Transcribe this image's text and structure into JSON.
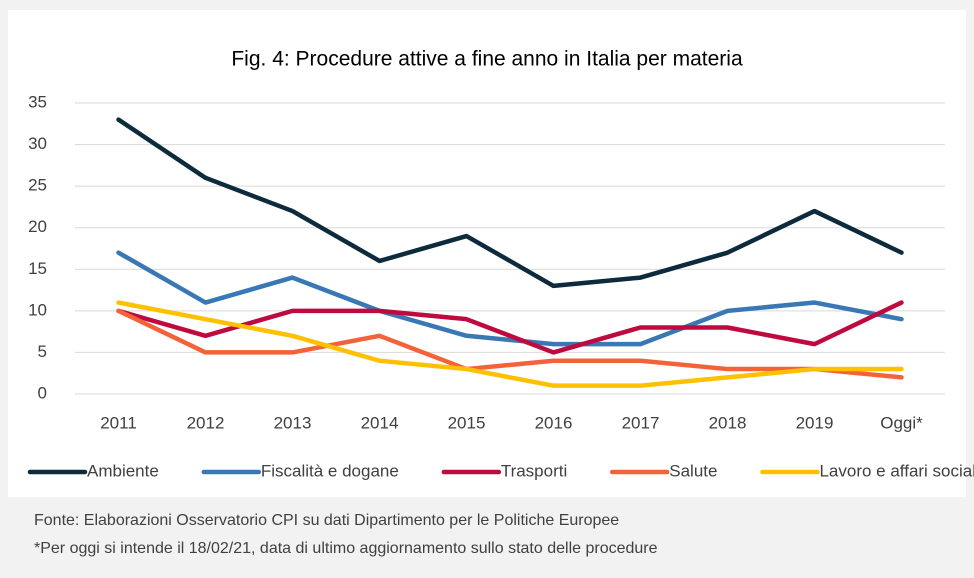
{
  "chart_data": {
    "type": "line",
    "title": "Fig. 4: Procedure attive a fine anno in Italia per materia",
    "categories": [
      "2011",
      "2012",
      "2013",
      "2014",
      "2015",
      "2016",
      "2017",
      "2018",
      "2019",
      "Oggi*"
    ],
    "series": [
      {
        "name": "Ambiente",
        "color": "#0e2a3d",
        "values": [
          33,
          26,
          22,
          16,
          19,
          13,
          14,
          17,
          22,
          17
        ]
      },
      {
        "name": "Fiscalità e dogane",
        "color": "#3a78b5",
        "values": [
          17,
          11,
          14,
          10,
          7,
          6,
          6,
          10,
          11,
          9
        ]
      },
      {
        "name": "Trasporti",
        "color": "#be0a3e",
        "values": [
          10,
          7,
          10,
          10,
          9,
          5,
          8,
          8,
          6,
          11
        ]
      },
      {
        "name": "Salute",
        "color": "#f4623a",
        "values": [
          10,
          5,
          5,
          7,
          3,
          4,
          4,
          3,
          3,
          2
        ]
      },
      {
        "name": "Lavoro e affari sociali",
        "color": "#ffc000",
        "values": [
          11,
          9,
          7,
          4,
          3,
          1,
          1,
          2,
          3,
          3
        ]
      }
    ],
    "ylim": [
      0,
      35
    ],
    "yticks": [
      0,
      5,
      10,
      15,
      20,
      25,
      30,
      35
    ],
    "grid": true,
    "legend": "bottom",
    "notes": [
      "Fonte: Elaborazioni Osservatorio CPI su dati Dipartimento per le Politiche Europee",
      "*Per oggi si intende il 18/02/21, data di ultimo aggiornamento sullo stato delle procedure"
    ]
  }
}
